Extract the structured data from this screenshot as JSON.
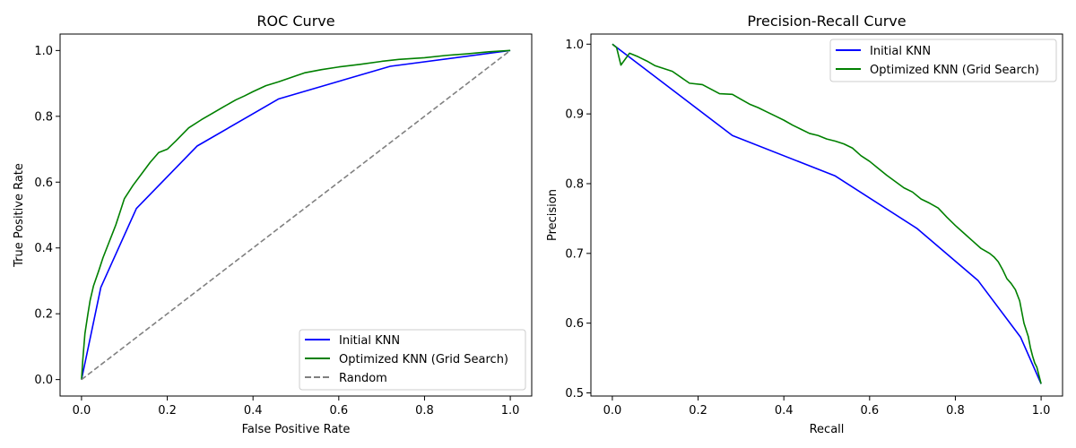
{
  "chart_data": [
    {
      "type": "line",
      "title": "ROC Curve",
      "xlabel": "False Positive Rate",
      "ylabel": "True Positive Rate",
      "xlim": [
        -0.05,
        1.05
      ],
      "ylim": [
        -0.05,
        1.05
      ],
      "xticks": [
        "0.0",
        "0.2",
        "0.4",
        "0.6",
        "0.8",
        "1.0"
      ],
      "yticks": [
        "0.0",
        "0.2",
        "0.4",
        "0.6",
        "0.8",
        "1.0"
      ],
      "grid": false,
      "legend_position": "lower right",
      "series": [
        {
          "name": "Initial KNN",
          "color": "#0000ff",
          "dash": "solid",
          "x": [
            0.0,
            0.045,
            0.128,
            0.27,
            0.46,
            0.72,
            1.0
          ],
          "y": [
            0.0,
            0.28,
            0.52,
            0.71,
            0.853,
            0.952,
            1.0
          ]
        },
        {
          "name": "Optimized KNN (Grid Search)",
          "color": "#008000",
          "dash": "solid",
          "x": [
            0.0,
            0.003,
            0.008,
            0.015,
            0.02,
            0.028,
            0.04,
            0.05,
            0.065,
            0.08,
            0.09,
            0.1,
            0.12,
            0.14,
            0.16,
            0.18,
            0.2,
            0.22,
            0.25,
            0.28,
            0.3,
            0.33,
            0.36,
            0.38,
            0.4,
            0.43,
            0.46,
            0.5,
            0.52,
            0.56,
            0.6,
            0.65,
            0.7,
            0.74,
            0.8,
            0.85,
            0.9,
            0.95,
            1.0
          ],
          "y": [
            0.0,
            0.06,
            0.14,
            0.2,
            0.24,
            0.285,
            0.33,
            0.37,
            0.42,
            0.47,
            0.51,
            0.55,
            0.59,
            0.625,
            0.66,
            0.69,
            0.7,
            0.725,
            0.765,
            0.79,
            0.805,
            0.828,
            0.85,
            0.862,
            0.875,
            0.893,
            0.905,
            0.923,
            0.932,
            0.942,
            0.95,
            0.958,
            0.967,
            0.973,
            0.978,
            0.985,
            0.99,
            0.996,
            1.0
          ]
        },
        {
          "name": "Random",
          "color": "#808080",
          "dash": "dashed",
          "x": [
            0.0,
            1.0
          ],
          "y": [
            0.0,
            1.0
          ]
        }
      ]
    },
    {
      "type": "line",
      "title": "Precision-Recall Curve",
      "xlabel": "Recall",
      "ylabel": "Precision",
      "xlim": [
        -0.05,
        1.05
      ],
      "ylim": [
        0.4955,
        1.0145
      ],
      "xticks": [
        "0.0",
        "0.2",
        "0.4",
        "0.6",
        "0.8",
        "1.0"
      ],
      "yticks": [
        "0.5",
        "0.6",
        "0.7",
        "0.8",
        "0.9",
        "1.0"
      ],
      "grid": false,
      "legend_position": "upper right",
      "series": [
        {
          "name": "Initial KNN",
          "color": "#0000ff",
          "dash": "solid",
          "x": [
            0.0,
            0.28,
            0.52,
            0.71,
            0.853,
            0.952,
            1.0
          ],
          "y": [
            1.0,
            0.869,
            0.811,
            0.736,
            0.661,
            0.58,
            0.513
          ]
        },
        {
          "name": "Optimized KNN (Grid Search)",
          "color": "#008000",
          "dash": "solid",
          "x": [
            0.0,
            0.01,
            0.02,
            0.04,
            0.06,
            0.08,
            0.1,
            0.12,
            0.14,
            0.18,
            0.21,
            0.25,
            0.28,
            0.3,
            0.32,
            0.34,
            0.36,
            0.38,
            0.4,
            0.42,
            0.44,
            0.46,
            0.48,
            0.5,
            0.52,
            0.54,
            0.56,
            0.58,
            0.6,
            0.62,
            0.64,
            0.66,
            0.68,
            0.7,
            0.72,
            0.74,
            0.76,
            0.78,
            0.8,
            0.82,
            0.84,
            0.86,
            0.88,
            0.89,
            0.9,
            0.91,
            0.92,
            0.93,
            0.94,
            0.95,
            0.96,
            0.97,
            0.975,
            0.98,
            0.985,
            0.99,
            1.0
          ],
          "y": [
            1.0,
            0.995,
            0.97,
            0.987,
            0.982,
            0.976,
            0.969,
            0.965,
            0.961,
            0.944,
            0.942,
            0.929,
            0.928,
            0.921,
            0.914,
            0.909,
            0.903,
            0.897,
            0.891,
            0.884,
            0.878,
            0.872,
            0.869,
            0.864,
            0.861,
            0.857,
            0.851,
            0.84,
            0.832,
            0.822,
            0.812,
            0.803,
            0.794,
            0.788,
            0.778,
            0.772,
            0.765,
            0.752,
            0.74,
            0.729,
            0.718,
            0.707,
            0.7,
            0.695,
            0.688,
            0.677,
            0.664,
            0.657,
            0.648,
            0.632,
            0.6,
            0.581,
            0.565,
            0.553,
            0.543,
            0.537,
            0.513
          ]
        }
      ]
    }
  ]
}
